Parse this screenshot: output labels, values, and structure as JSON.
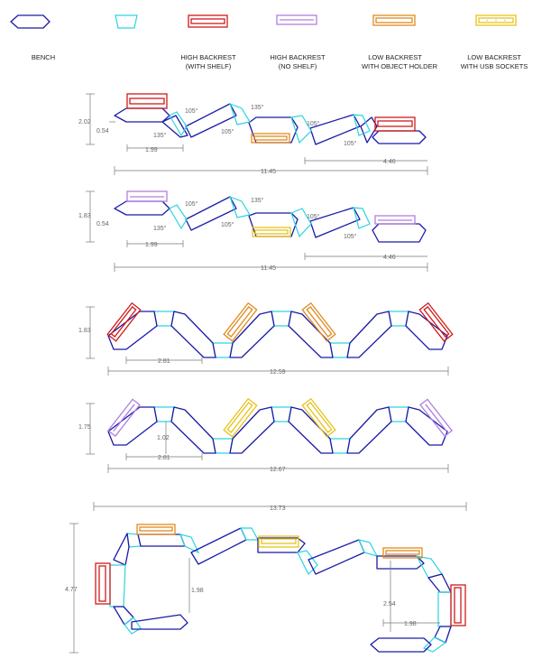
{
  "colors": {
    "bench": "#1a1aa8",
    "connector": "#2ad4e0",
    "high_shelf": "#d11a1a",
    "high_no_shelf": "#b07ee0",
    "low_object": "#e08a1e",
    "low_usb": "#e8c21a",
    "dimension": "#777777"
  },
  "legend": [
    {
      "line1": "BENCH",
      "line2": ""
    },
    {
      "line1": "",
      "line2": ""
    },
    {
      "line1": "HIGH BACKREST",
      "line2": "(WITH SHELF)"
    },
    {
      "line1": "HIGH BACKREST",
      "line2": "(NO SHELF)"
    },
    {
      "line1": "LOW BACKREST",
      "line2": "WITH OBJECT HOLDER"
    },
    {
      "line1": "LOW BACKREST",
      "line2": "WITH USB SOCKETS"
    }
  ],
  "config1": {
    "height": "2.02",
    "offset": "0.54",
    "bench_len": "1.99",
    "total": "11.45",
    "end_len": "4.46",
    "angles": [
      "135°",
      "105°",
      "105°",
      "135°",
      "105°",
      "105°"
    ]
  },
  "config2": {
    "height": "1.83",
    "offset": "0.54",
    "bench_len": "1.99",
    "total": "11.45",
    "end_len": "4.46",
    "angles": [
      "135°",
      "105°",
      "105°",
      "135°",
      "105°",
      "105°"
    ]
  },
  "config3": {
    "height": "1.83",
    "segment": "2.81",
    "total": "12.59"
  },
  "config4": {
    "height": "1.75",
    "rise": "1.02",
    "segment": "2.81",
    "total": "12.67"
  },
  "config5": {
    "total": "13.73",
    "height": "4.77",
    "drop1": "1.98",
    "drop2": "2.54",
    "end_len": "1.98"
  }
}
